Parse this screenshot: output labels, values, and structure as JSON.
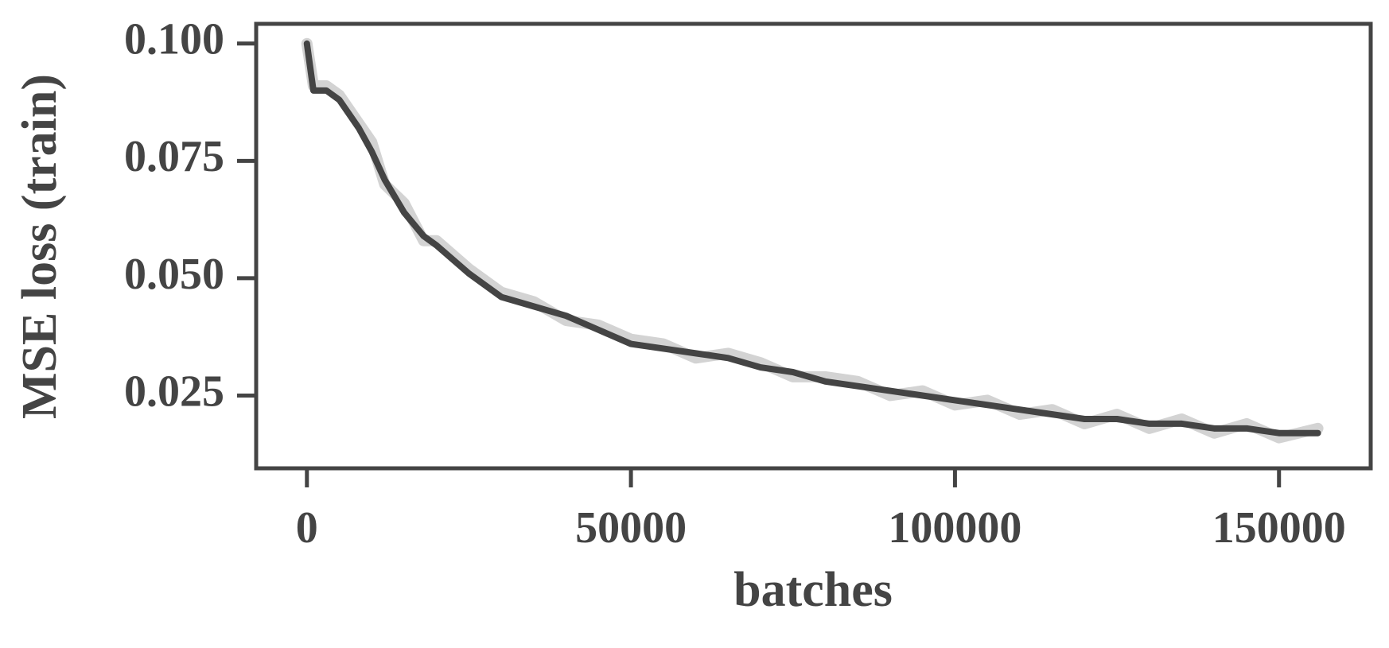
{
  "chart_data": {
    "type": "line",
    "x_label": "batches",
    "y_label": "MSE loss (train)",
    "x": [
      0,
      1000,
      3000,
      5000,
      8000,
      10000,
      12000,
      15000,
      18000,
      20000,
      25000,
      30000,
      35000,
      40000,
      45000,
      50000,
      55000,
      60000,
      65000,
      70000,
      75000,
      80000,
      85000,
      90000,
      95000,
      100000,
      105000,
      110000,
      115000,
      120000,
      125000,
      130000,
      135000,
      140000,
      145000,
      150000,
      156000
    ],
    "series": [
      {
        "color": "#d3d3d3",
        "values": [
          0.1,
          0.091,
          0.091,
          0.089,
          0.083,
          0.079,
          0.07,
          0.066,
          0.058,
          0.058,
          0.052,
          0.047,
          0.045,
          0.041,
          0.04,
          0.037,
          0.036,
          0.033,
          0.034,
          0.032,
          0.029,
          0.029,
          0.028,
          0.025,
          0.026,
          0.023,
          0.024,
          0.021,
          0.022,
          0.019,
          0.021,
          0.018,
          0.02,
          0.017,
          0.019,
          0.016,
          0.018
        ]
      },
      {
        "color": "#444444",
        "values": [
          0.1,
          0.09,
          0.09,
          0.088,
          0.082,
          0.077,
          0.071,
          0.064,
          0.059,
          0.057,
          0.051,
          0.046,
          0.044,
          0.042,
          0.039,
          0.036,
          0.035,
          0.034,
          0.033,
          0.031,
          0.03,
          0.028,
          0.027,
          0.026,
          0.025,
          0.024,
          0.023,
          0.022,
          0.021,
          0.02,
          0.02,
          0.019,
          0.019,
          0.018,
          0.018,
          0.017,
          0.017
        ]
      }
    ],
    "xlim": [
      -7830,
      164150
    ],
    "xticks": [
      0,
      50000,
      100000,
      150000
    ],
    "ylim": [
      0.0095,
      0.1042
    ],
    "yticks": [
      {
        "value": 0.025,
        "label": "0.025"
      },
      {
        "value": 0.05,
        "label": "0.050"
      },
      0.075,
      {
        "value": 0.1,
        "label": "0.100"
      }
    ]
  }
}
